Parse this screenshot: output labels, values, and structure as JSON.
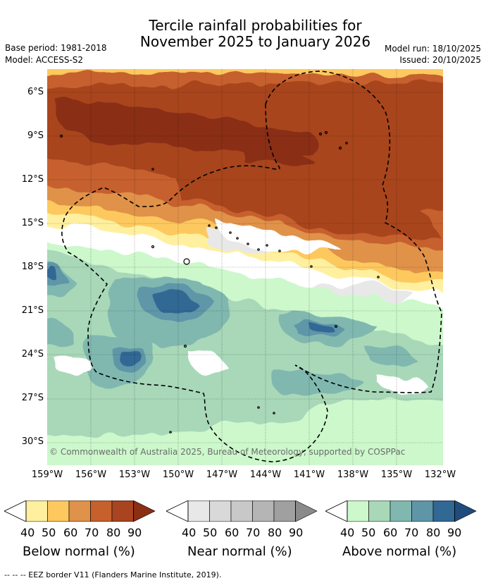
{
  "title": {
    "line1": "Tercile rainfall probabilities for",
    "line2": "November 2025 to January 2026"
  },
  "meta": {
    "base_period": "Base period: 1981-2018",
    "model": "Model: ACCESS-S2",
    "model_run": "Model run: 18/10/2025",
    "issued": "Issued: 20/10/2025"
  },
  "map": {
    "lat_ticks": [
      "6°S",
      "9°S",
      "12°S",
      "15°S",
      "18°S",
      "21°S",
      "24°S",
      "27°S",
      "30°S"
    ],
    "lon_ticks": [
      "159°W",
      "156°W",
      "153°W",
      "150°W",
      "147°W",
      "144°W",
      "141°W",
      "138°W",
      "135°W",
      "132°W"
    ],
    "copyright": "© Commonwealth of Australia 2025, Bureau of Meteorology, supported by COSPPac"
  },
  "colorbars": {
    "ticks": [
      "40",
      "50",
      "60",
      "70",
      "80",
      "90"
    ],
    "below": {
      "title": "Below normal (%)",
      "colors": [
        "#fff0a0",
        "#fdc95e",
        "#e0924a",
        "#c6612e",
        "#a8441f",
        "#8a2e14"
      ]
    },
    "near": {
      "title": "Near normal (%)",
      "colors": [
        "#e8e8e8",
        "#d9d9d9",
        "#c8c8c8",
        "#b5b5b5",
        "#a0a0a0",
        "#8a8a8a"
      ]
    },
    "above": {
      "title": "Above normal (%)",
      "colors": [
        "#ccf8cc",
        "#a8d8b8",
        "#80b8b0",
        "#5e96a8",
        "#326894",
        "#1f4c7c"
      ]
    }
  },
  "footer": "--  --  -- EEZ border V11 (Flanders Marine Institute, 2019)."
}
